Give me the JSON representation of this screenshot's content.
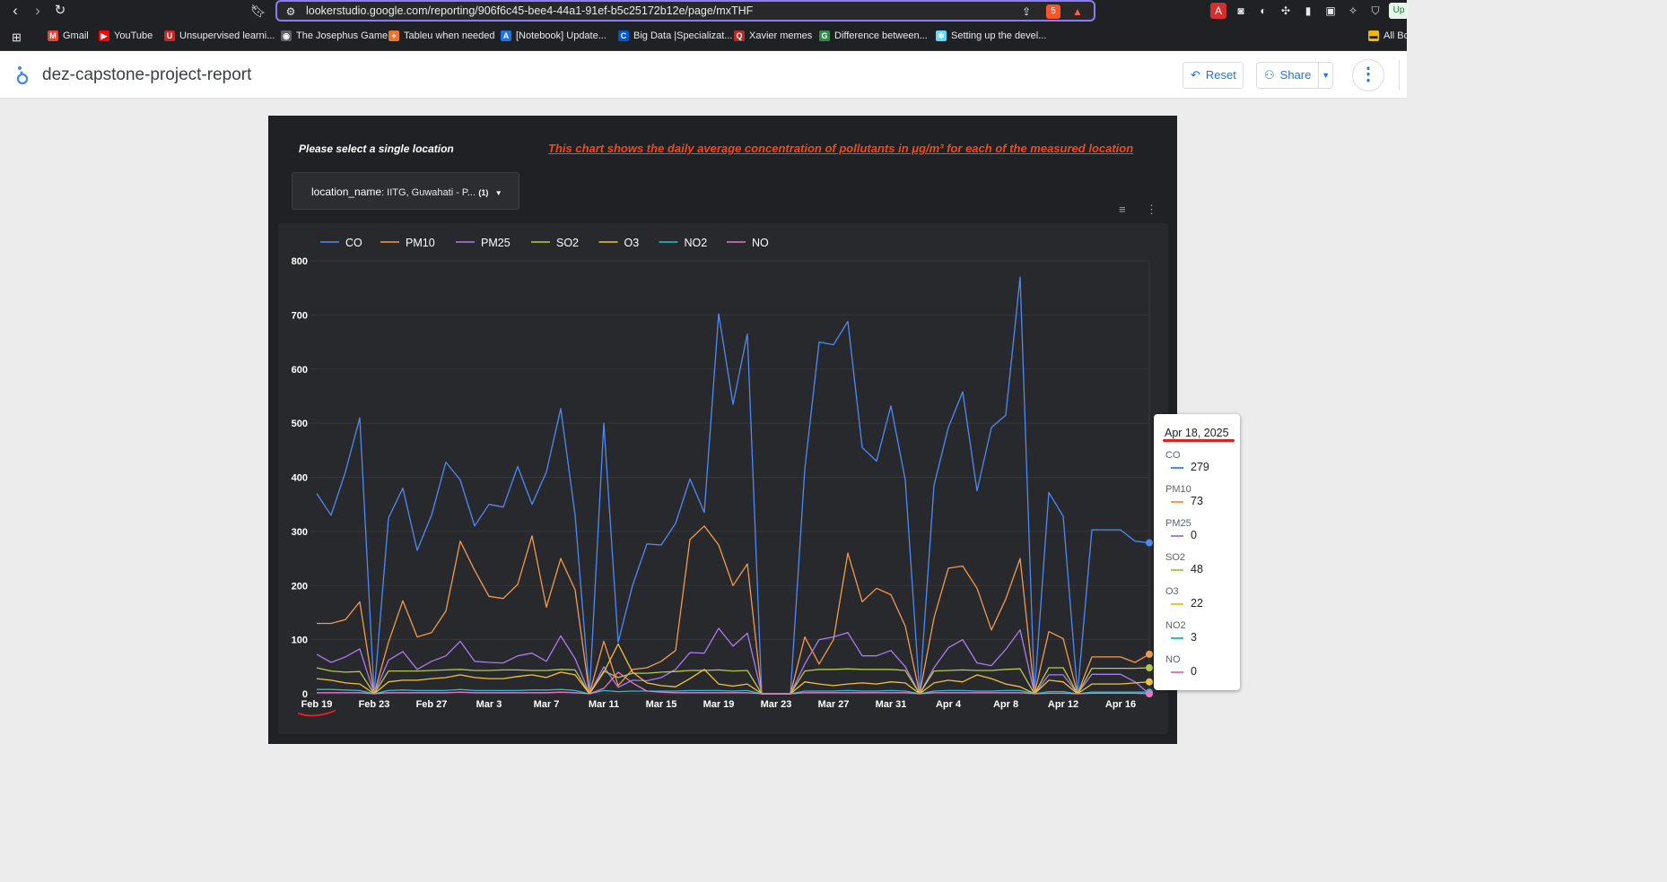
{
  "browser": {
    "url": "lookerstudio.google.com/reporting/906f6c45-bee4-44a1-91ef-b5c25172b12e/page/mxTHF",
    "extension_badge": "5",
    "edge_label": "Up",
    "bookmarks": [
      {
        "label": "Gmail",
        "icon": "gmail-icon",
        "color": "#ea4335",
        "glyph": "M"
      },
      {
        "label": "YouTube",
        "icon": "youtube-icon",
        "color": "#ff0000",
        "glyph": "▶"
      },
      {
        "label": "Unsupervised learni...",
        "icon": "bookmark-icon",
        "color": "#c62828",
        "glyph": "U"
      },
      {
        "label": "The Josephus Game",
        "icon": "globe-icon",
        "color": "#5f6368",
        "glyph": "◉"
      },
      {
        "label": "Tableu when needed",
        "icon": "tableau-icon",
        "color": "#e8762d",
        "glyph": "+"
      },
      {
        "label": "[Notebook] Update...",
        "icon": "notebook-icon",
        "color": "#1a73e8",
        "glyph": "A"
      },
      {
        "label": "Big Data |Specializat...",
        "icon": "coursera-icon",
        "color": "#0056d2",
        "glyph": "C"
      },
      {
        "label": "Xavier memes",
        "icon": "quora-icon",
        "color": "#b92b27",
        "glyph": "Q"
      },
      {
        "label": "Difference between...",
        "icon": "gfg-icon",
        "color": "#2f8d46",
        "glyph": "G"
      },
      {
        "label": "Setting up the devel...",
        "icon": "react-icon",
        "color": "#61dafb",
        "glyph": "⚛"
      }
    ],
    "all_bookmarks": "All Bo"
  },
  "app": {
    "title": "dez-capstone-project-report",
    "reset_label": "Reset",
    "share_label": "Share"
  },
  "report": {
    "prompt": "Please select a single location",
    "note": "This chart shows the daily average concentration of pollutants in μg/m³ for each of the measured location",
    "filter_field": "location_name",
    "filter_value": ": IITG, Guwahati - P...",
    "filter_count": "(1)"
  },
  "tooltip": {
    "date": "Apr 18, 2025",
    "items": [
      {
        "name": "CO",
        "value": "279"
      },
      {
        "name": "PM10",
        "value": "73"
      },
      {
        "name": "PM25",
        "value": "0"
      },
      {
        "name": "SO2",
        "value": "48"
      },
      {
        "name": "O3",
        "value": "22"
      },
      {
        "name": "NO2",
        "value": "3"
      },
      {
        "name": "NO",
        "value": "0"
      }
    ]
  },
  "chart_data": {
    "type": "line",
    "title": "",
    "xlabel": "",
    "ylabel": "",
    "ylim": [
      0,
      800
    ],
    "yticks": [
      0,
      100,
      200,
      300,
      400,
      500,
      600,
      700,
      800
    ],
    "xtick_labels": [
      "Feb 19",
      "Feb 23",
      "Feb 27",
      "Mar 3",
      "Mar 7",
      "Mar 11",
      "Mar 15",
      "Mar 19",
      "Mar 23",
      "Mar 27",
      "Mar 31",
      "Apr 4",
      "Apr 8",
      "Apr 12",
      "Apr 16"
    ],
    "xtick_index": [
      0,
      4,
      8,
      12,
      16,
      20,
      24,
      28,
      32,
      36,
      40,
      44,
      48,
      52,
      56
    ],
    "n_days": 59,
    "legend_position": "top-left",
    "series": [
      {
        "name": "CO",
        "color": "#4e8af6",
        "values": [
          370,
          330,
          410,
          510,
          0,
          325,
          380,
          265,
          330,
          428,
          395,
          310,
          350,
          345,
          420,
          350,
          410,
          527,
          330,
          0,
          500,
          95,
          200,
          277,
          275,
          315,
          397,
          335,
          702,
          535,
          665,
          0,
          0,
          0,
          415,
          650,
          645,
          688,
          455,
          430,
          532,
          395,
          0,
          385,
          492,
          558,
          375,
          492,
          515,
          770,
          0,
          372,
          328,
          0,
          303,
          303,
          303,
          282,
          279
        ]
      },
      {
        "name": "PM10",
        "color": "#f29a4e",
        "values": [
          130,
          130,
          137,
          170,
          0,
          95,
          172,
          105,
          113,
          153,
          282,
          228,
          180,
          176,
          202,
          292,
          160,
          250,
          192,
          0,
          97,
          15,
          45,
          48,
          60,
          80,
          285,
          310,
          275,
          200,
          240,
          0,
          0,
          0,
          105,
          55,
          100,
          260,
          170,
          195,
          183,
          125,
          0,
          140,
          232,
          236,
          195,
          118,
          175,
          250,
          0,
          115,
          102,
          0,
          68,
          68,
          68,
          58,
          73
        ]
      },
      {
        "name": "PM25",
        "color": "#a97cf0",
        "values": [
          73,
          58,
          68,
          83,
          0,
          62,
          78,
          45,
          60,
          70,
          97,
          60,
          58,
          57,
          70,
          75,
          60,
          107,
          65,
          0,
          50,
          12,
          25,
          24,
          30,
          45,
          76,
          75,
          121,
          88,
          112,
          0,
          0,
          0,
          55,
          100,
          105,
          113,
          70,
          70,
          80,
          50,
          0,
          48,
          85,
          100,
          57,
          52,
          82,
          118,
          0,
          35,
          35,
          0,
          36,
          36,
          36,
          22,
          0
        ]
      },
      {
        "name": "SO2",
        "color": "#b7c94a",
        "values": [
          48,
          42,
          40,
          41,
          0,
          42,
          42,
          42,
          43,
          44,
          45,
          43,
          43,
          44,
          44,
          43,
          43,
          45,
          44,
          0,
          42,
          30,
          38,
          38,
          40,
          41,
          43,
          43,
          44,
          42,
          43,
          0,
          0,
          0,
          42,
          45,
          45,
          46,
          45,
          45,
          45,
          43,
          0,
          42,
          43,
          44,
          43,
          43,
          45,
          46,
          0,
          48,
          48,
          0,
          47,
          47,
          47,
          47,
          48
        ]
      },
      {
        "name": "O3",
        "color": "#f2c23c",
        "values": [
          28,
          25,
          20,
          18,
          0,
          22,
          25,
          25,
          28,
          30,
          35,
          30,
          28,
          28,
          32,
          35,
          30,
          40,
          35,
          0,
          40,
          92,
          40,
          20,
          15,
          13,
          28,
          45,
          18,
          14,
          18,
          0,
          0,
          0,
          22,
          18,
          15,
          18,
          20,
          18,
          22,
          20,
          0,
          20,
          25,
          22,
          35,
          28,
          18,
          13,
          0,
          25,
          22,
          0,
          18,
          18,
          18,
          20,
          22
        ]
      },
      {
        "name": "NO2",
        "color": "#27bfcf",
        "values": [
          8,
          8,
          7,
          6,
          0,
          6,
          7,
          6,
          6,
          6,
          8,
          6,
          6,
          6,
          6,
          7,
          7,
          8,
          6,
          0,
          6,
          4,
          5,
          5,
          5,
          5,
          6,
          6,
          6,
          5,
          6,
          0,
          0,
          0,
          5,
          5,
          5,
          6,
          5,
          5,
          6,
          5,
          0,
          5,
          6,
          6,
          5,
          5,
          6,
          6,
          0,
          4,
          4,
          0,
          3,
          3,
          3,
          3,
          3
        ]
      },
      {
        "name": "NO",
        "color": "#e776c4",
        "values": [
          2,
          2,
          2,
          2,
          0,
          2,
          2,
          2,
          2,
          2,
          3,
          2,
          2,
          2,
          2,
          2,
          2,
          3,
          2,
          0,
          10,
          40,
          20,
          5,
          3,
          2,
          2,
          2,
          2,
          2,
          2,
          0,
          0,
          0,
          2,
          2,
          2,
          2,
          2,
          2,
          2,
          2,
          0,
          2,
          2,
          2,
          2,
          2,
          2,
          2,
          0,
          1,
          1,
          0,
          1,
          1,
          1,
          1,
          0
        ]
      }
    ]
  }
}
